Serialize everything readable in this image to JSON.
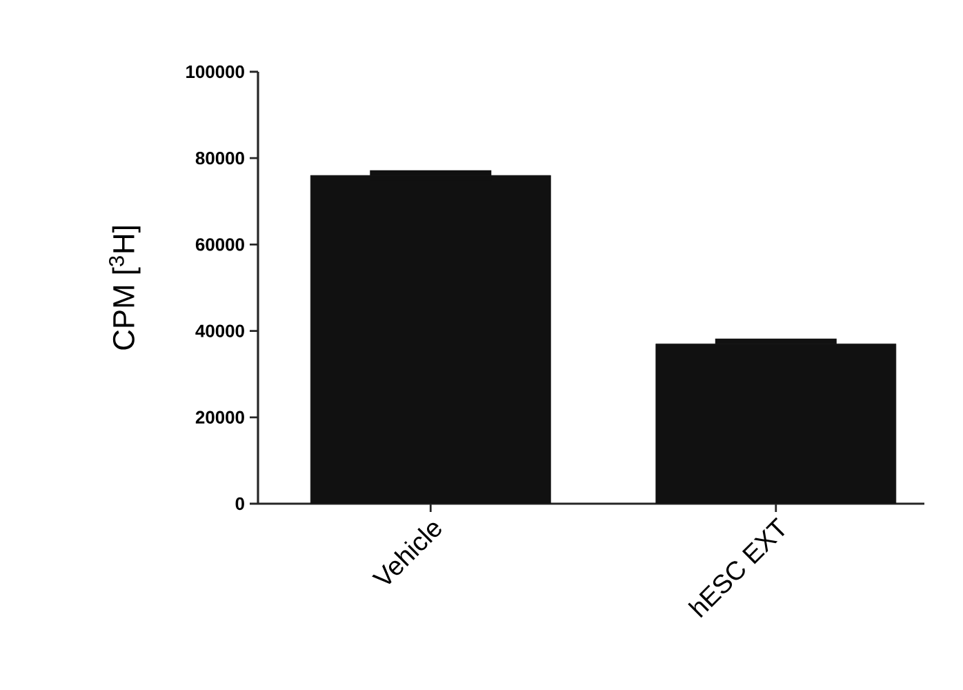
{
  "chart_data": {
    "type": "bar",
    "ylabel": "CPM [$^{3}$H]",
    "categories": [
      "Vehicle",
      "hESC EXT"
    ],
    "values": [
      76000,
      37000
    ],
    "errors": [
      1200,
      1200
    ],
    "color": "#111111",
    "ylim": [
      0,
      100000
    ],
    "yticks": [
      0,
      20000,
      40000,
      60000,
      80000,
      100000
    ],
    "grid": false
  }
}
